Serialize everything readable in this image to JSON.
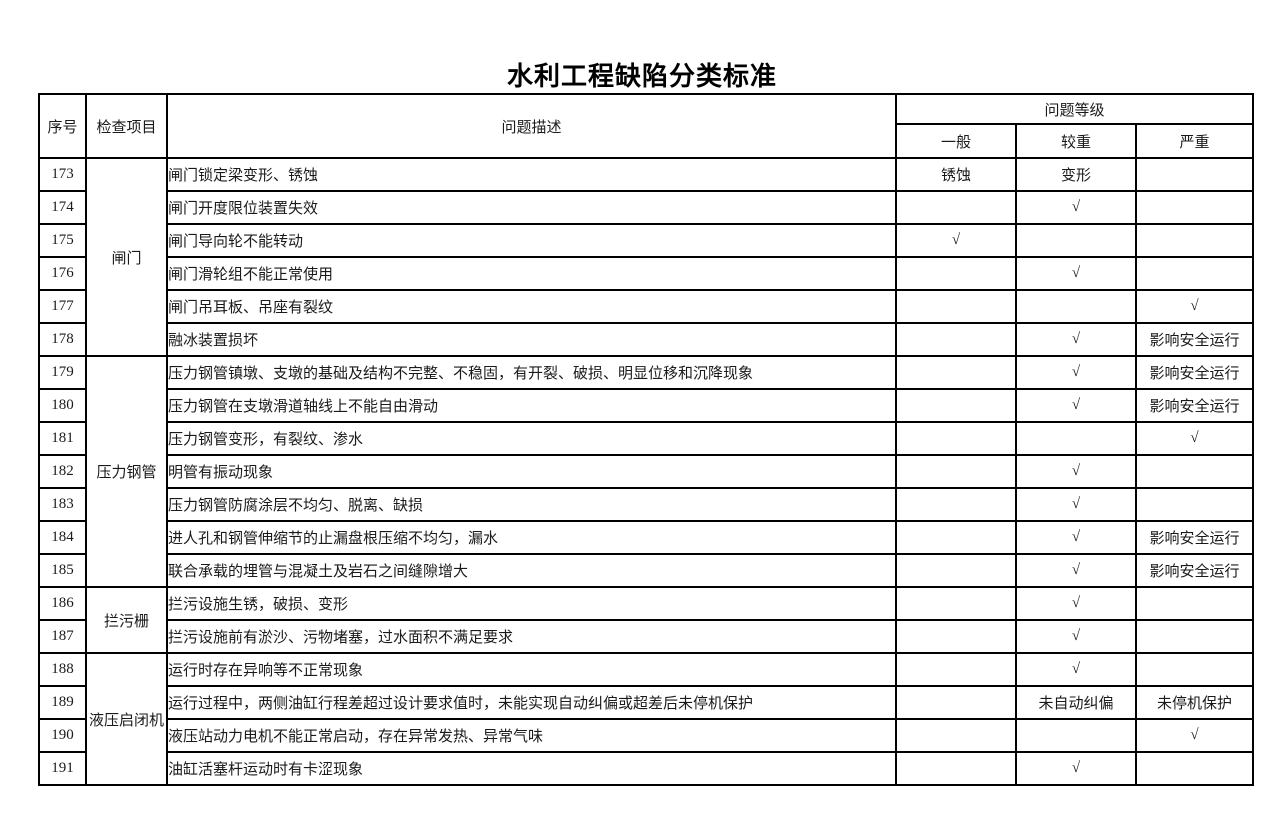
{
  "page": {
    "title": "水利工程缺陷分类标准"
  },
  "table": {
    "headers": {
      "seq": "序号",
      "check_item": "检查项目",
      "problem_desc": "问题描述",
      "problem_level": "问题等级",
      "levels": [
        "一般",
        "较重",
        "严重"
      ]
    },
    "groups": [
      {
        "item": "闸门",
        "rowspan": 6
      },
      {
        "item": "压力钢管",
        "rowspan": 7
      },
      {
        "item": "拦污栅",
        "rowspan": 2
      },
      {
        "item": "液压启闭机",
        "rowspan": 4
      }
    ],
    "rows": [
      {
        "seq": "173",
        "group": 0,
        "desc": "闸门锁定梁变形、锈蚀",
        "levels": [
          "锈蚀",
          "变形",
          ""
        ]
      },
      {
        "seq": "174",
        "group": 0,
        "desc": "闸门开度限位装置失效",
        "levels": [
          "",
          "√",
          ""
        ]
      },
      {
        "seq": "175",
        "group": 0,
        "desc": "闸门导向轮不能转动",
        "levels": [
          "√",
          "",
          ""
        ]
      },
      {
        "seq": "176",
        "group": 0,
        "desc": "闸门滑轮组不能正常使用",
        "levels": [
          "",
          "√",
          ""
        ]
      },
      {
        "seq": "177",
        "group": 0,
        "desc": "闸门吊耳板、吊座有裂纹",
        "levels": [
          "",
          "",
          "√"
        ]
      },
      {
        "seq": "178",
        "group": 0,
        "desc": "融冰装置损坏",
        "levels": [
          "",
          "√",
          "影响安全运行"
        ]
      },
      {
        "seq": "179",
        "group": 1,
        "desc": "压力钢管镇墩、支墩的基础及结构不完整、不稳固，有开裂、破损、明显位移和沉降现象",
        "levels": [
          "",
          "√",
          "影响安全运行"
        ]
      },
      {
        "seq": "180",
        "group": 1,
        "desc": "压力钢管在支墩滑道轴线上不能自由滑动",
        "levels": [
          "",
          "√",
          "影响安全运行"
        ]
      },
      {
        "seq": "181",
        "group": 1,
        "desc": "压力钢管变形，有裂纹、渗水",
        "levels": [
          "",
          "",
          "√"
        ]
      },
      {
        "seq": "182",
        "group": 1,
        "desc": "明管有振动现象",
        "levels": [
          "",
          "√",
          ""
        ]
      },
      {
        "seq": "183",
        "group": 1,
        "desc": "压力钢管防腐涂层不均匀、脱离、缺损",
        "levels": [
          "",
          "√",
          ""
        ]
      },
      {
        "seq": "184",
        "group": 1,
        "desc": "进人孔和钢管伸缩节的止漏盘根压缩不均匀，漏水",
        "levels": [
          "",
          "√",
          "影响安全运行"
        ]
      },
      {
        "seq": "185",
        "group": 1,
        "desc": "联合承载的埋管与混凝土及岩石之间缝隙增大",
        "levels": [
          "",
          "√",
          "影响安全运行"
        ]
      },
      {
        "seq": "186",
        "group": 2,
        "desc": "拦污设施生锈，破损、变形",
        "levels": [
          "",
          "√",
          ""
        ]
      },
      {
        "seq": "187",
        "group": 2,
        "desc": "拦污设施前有淤沙、污物堵塞，过水面积不满足要求",
        "levels": [
          "",
          "√",
          ""
        ]
      },
      {
        "seq": "188",
        "group": 3,
        "desc": "运行时存在异响等不正常现象",
        "levels": [
          "",
          "√",
          ""
        ]
      },
      {
        "seq": "189",
        "group": 3,
        "desc": "运行过程中，两侧油缸行程差超过设计要求值时，未能实现自动纠偏或超差后未停机保护",
        "levels": [
          "",
          "未自动纠偏",
          "未停机保护"
        ]
      },
      {
        "seq": "190",
        "group": 3,
        "desc": "液压站动力电机不能正常启动，存在异常发热、异常气味",
        "levels": [
          "",
          "",
          "√"
        ]
      },
      {
        "seq": "191",
        "group": 3,
        "desc": "油缸活塞杆运动时有卡涩现象",
        "levels": [
          "",
          "√",
          ""
        ]
      }
    ]
  }
}
